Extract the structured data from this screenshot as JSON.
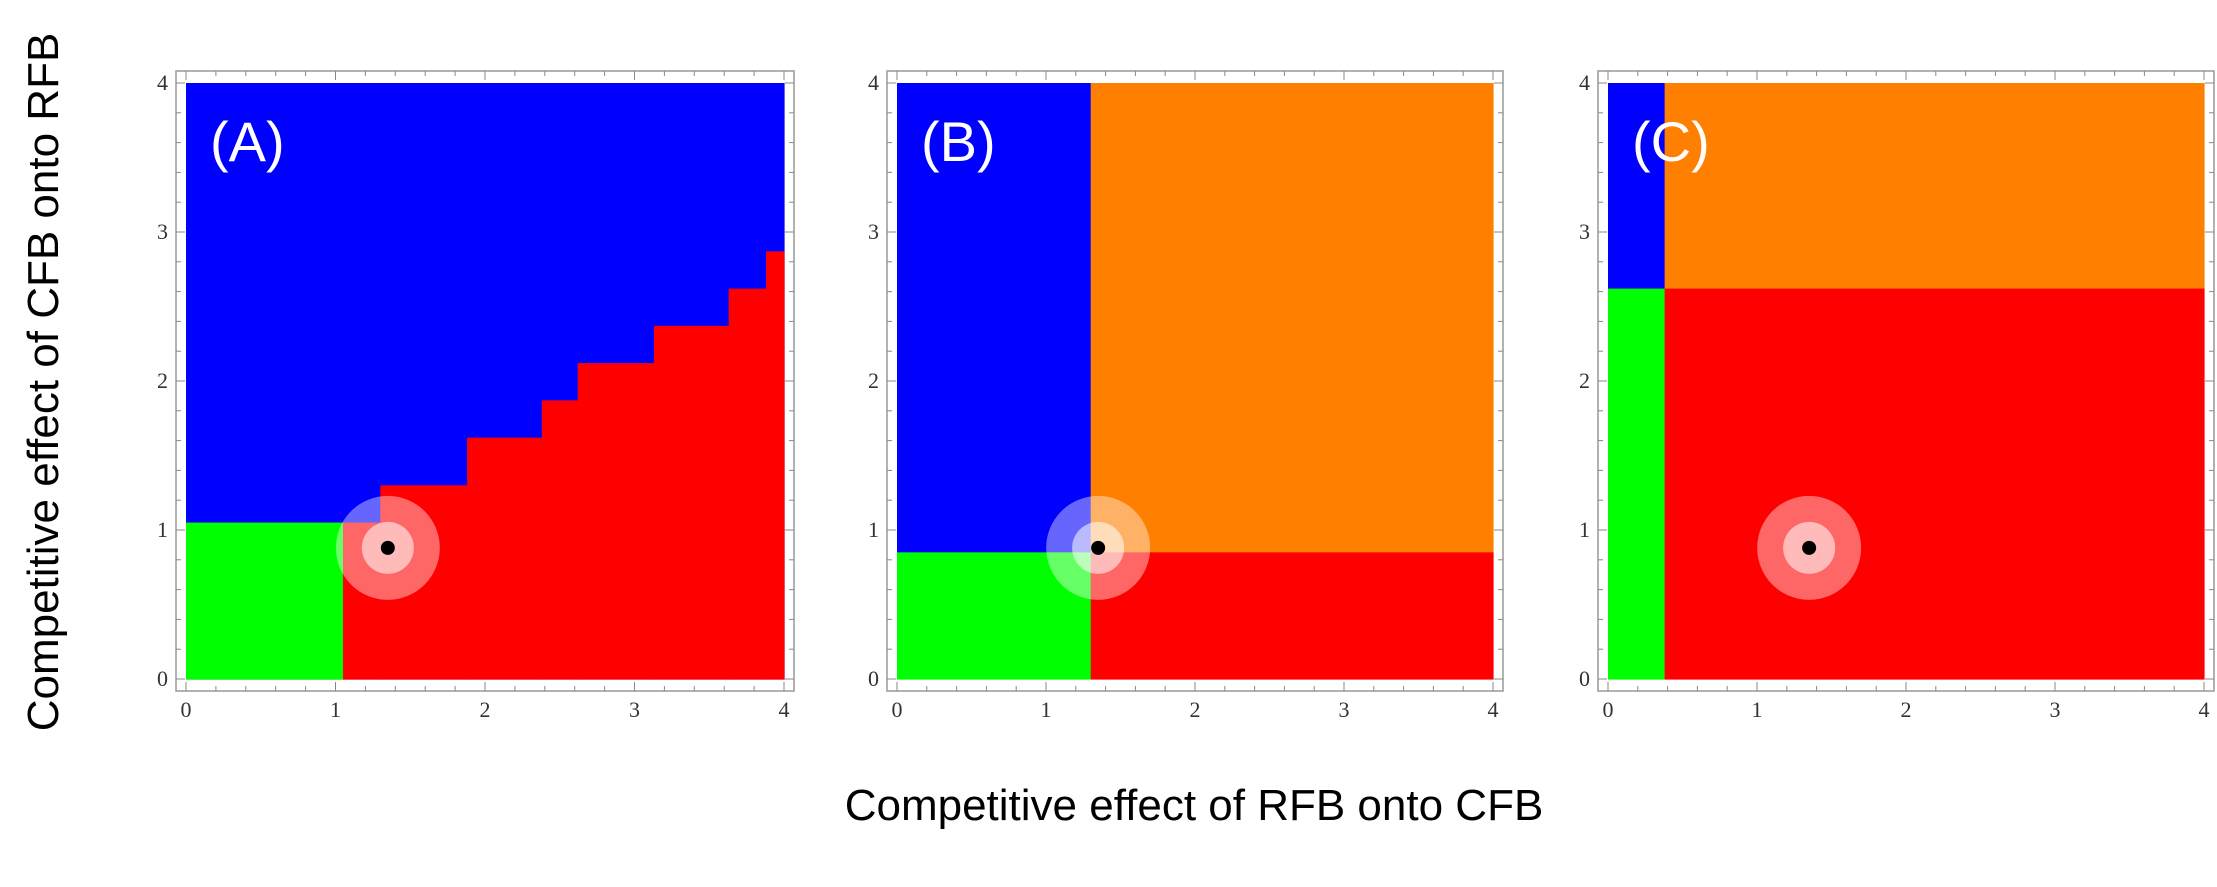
{
  "figure": {
    "ylabel": "Competitive effect of CFB onto RFB",
    "xlabel": "Competitive effect of RFB onto CFB"
  },
  "colors": {
    "blue": "#0000ff",
    "green": "#00ff00",
    "red": "#ff0000",
    "orange": "#ff7f00",
    "halo": "#ffffff",
    "marker": "#000000",
    "frame": "#999999"
  },
  "chart_data": [
    {
      "type": "heatmap",
      "panel_label": "(A)",
      "xlim": [
        0,
        4
      ],
      "ylim": [
        0,
        4
      ],
      "xticks": [
        "0",
        "1",
        "2",
        "3",
        "4"
      ],
      "yticks": [
        "0",
        "1",
        "2",
        "3",
        "4"
      ],
      "regions": [
        {
          "color": "blue",
          "x": [
            0,
            4
          ],
          "y": [
            0,
            4
          ]
        },
        {
          "color": "green",
          "x": [
            0,
            1.05
          ],
          "y": [
            0,
            1.05
          ]
        },
        {
          "color": "red",
          "x": [
            1.05,
            1.3
          ],
          "y": [
            0,
            1.05
          ]
        },
        {
          "color": "red",
          "x": [
            1.3,
            1.88
          ],
          "y": [
            0,
            1.3
          ]
        },
        {
          "color": "red",
          "x": [
            1.88,
            2.38
          ],
          "y": [
            0,
            1.62
          ]
        },
        {
          "color": "red",
          "x": [
            2.38,
            2.62
          ],
          "y": [
            0,
            1.87
          ]
        },
        {
          "color": "red",
          "x": [
            2.62,
            3.13
          ],
          "y": [
            0,
            2.12
          ]
        },
        {
          "color": "red",
          "x": [
            3.13,
            3.63
          ],
          "y": [
            0,
            2.37
          ]
        },
        {
          "color": "red",
          "x": [
            3.63,
            3.88
          ],
          "y": [
            0,
            2.62
          ]
        },
        {
          "color": "red",
          "x": [
            3.88,
            4
          ],
          "y": [
            0,
            2.87
          ]
        }
      ],
      "point": {
        "x": 1.35,
        "y": 0.88
      }
    },
    {
      "type": "heatmap",
      "panel_label": "(B)",
      "xlim": [
        0,
        4
      ],
      "ylim": [
        0,
        4
      ],
      "xticks": [
        "0",
        "1",
        "2",
        "3",
        "4"
      ],
      "yticks": [
        "0",
        "1",
        "2",
        "3",
        "4"
      ],
      "regions": [
        {
          "color": "blue",
          "x": [
            0,
            1.3
          ],
          "y": [
            0.85,
            4
          ]
        },
        {
          "color": "orange",
          "x": [
            1.3,
            4
          ],
          "y": [
            0.85,
            4
          ]
        },
        {
          "color": "green",
          "x": [
            0,
            1.3
          ],
          "y": [
            0,
            0.85
          ]
        },
        {
          "color": "red",
          "x": [
            1.3,
            4
          ],
          "y": [
            0,
            0.85
          ]
        }
      ],
      "point": {
        "x": 1.35,
        "y": 0.88
      }
    },
    {
      "type": "heatmap",
      "panel_label": "(C)",
      "xlim": [
        0,
        4
      ],
      "ylim": [
        0,
        4
      ],
      "xticks": [
        "0",
        "1",
        "2",
        "3",
        "4"
      ],
      "yticks": [
        "0",
        "1",
        "2",
        "3",
        "4"
      ],
      "regions": [
        {
          "color": "blue",
          "x": [
            0,
            0.38
          ],
          "y": [
            2.62,
            4
          ]
        },
        {
          "color": "orange",
          "x": [
            0.38,
            4
          ],
          "y": [
            2.62,
            4
          ]
        },
        {
          "color": "green",
          "x": [
            0,
            0.38
          ],
          "y": [
            0,
            2.62
          ]
        },
        {
          "color": "red",
          "x": [
            0.38,
            4
          ],
          "y": [
            0,
            2.62
          ]
        }
      ],
      "point": {
        "x": 1.35,
        "y": 0.88
      }
    }
  ]
}
